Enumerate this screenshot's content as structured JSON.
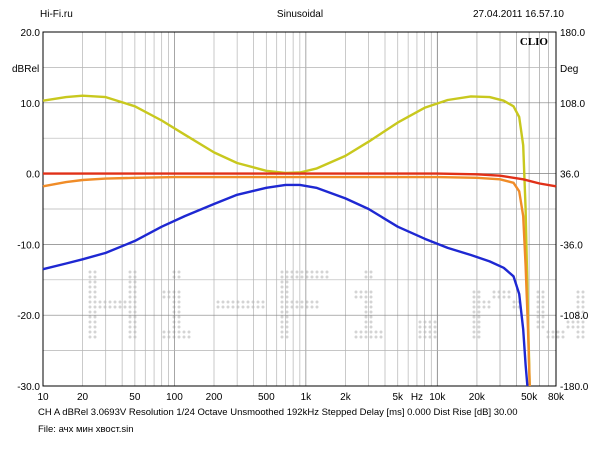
{
  "header": {
    "left": "Hi-Fi.ru",
    "center": "Sinusoidal",
    "right": "27.04.2011 16.57.10"
  },
  "footer": {
    "info": "CH A   dBRel 3.0693V   Resolution 1/24 Octave   Unsmoothed   192kHz   Stepped      Delay [ms] 0.000    Dist Rise [dB] 30.00",
    "file": "File: ачх мин хвост.sin"
  },
  "chart_data": {
    "type": "line",
    "logo": "CLIO",
    "watermark": "Hi-Fi.ru",
    "xscale": "log",
    "xlim": [
      10,
      80000
    ],
    "ylim_left": [
      -30,
      20
    ],
    "ylim_right": [
      -180,
      180
    ],
    "ylabel_left": "dBRel",
    "ylabel_right": "Deg",
    "xlabel": "Hz",
    "grid": true,
    "x_ticks": [
      {
        "v": 10,
        "label": "10"
      },
      {
        "v": 20,
        "label": "20"
      },
      {
        "v": 50,
        "label": "50"
      },
      {
        "v": 100,
        "label": "100"
      },
      {
        "v": 200,
        "label": "200"
      },
      {
        "v": 500,
        "label": "500"
      },
      {
        "v": 1000,
        "label": "1k"
      },
      {
        "v": 2000,
        "label": "2k"
      },
      {
        "v": 5000,
        "label": "5k"
      },
      {
        "v": 10000,
        "label": "10k"
      },
      {
        "v": 20000,
        "label": "20k"
      },
      {
        "v": 50000,
        "label": "50k"
      },
      {
        "v": 80000,
        "label": "80k"
      }
    ],
    "y_ticks_left": [
      {
        "v": 20,
        "label": "20.0"
      },
      {
        "v": 10,
        "label": "10.0"
      },
      {
        "v": 0,
        "label": "0.0"
      },
      {
        "v": -10,
        "label": "-10.0"
      },
      {
        "v": -20,
        "label": "-20.0"
      },
      {
        "v": -30,
        "label": "-30.0"
      }
    ],
    "y_ticks_right": [
      {
        "v": 180,
        "label": "180.0"
      },
      {
        "v": 108,
        "label": "108.0"
      },
      {
        "v": 36,
        "label": "36.0"
      },
      {
        "v": -36,
        "label": "-36.0"
      },
      {
        "v": -108,
        "label": "-108.0"
      },
      {
        "v": -180,
        "label": "-180.0"
      }
    ],
    "series": [
      {
        "color": "#c8c81e",
        "points": [
          [
            10,
            10.3
          ],
          [
            15,
            10.8
          ],
          [
            20,
            11
          ],
          [
            30,
            10.8
          ],
          [
            50,
            9.5
          ],
          [
            80,
            7.5
          ],
          [
            120,
            5.5
          ],
          [
            200,
            3
          ],
          [
            300,
            1.5
          ],
          [
            500,
            0.4
          ],
          [
            700,
            0.1
          ],
          [
            900,
            0.15
          ],
          [
            1200,
            0.7
          ],
          [
            2000,
            2.5
          ],
          [
            3000,
            4.5
          ],
          [
            5000,
            7.2
          ],
          [
            8000,
            9.3
          ],
          [
            12000,
            10.4
          ],
          [
            18000,
            10.9
          ],
          [
            25000,
            10.8
          ],
          [
            32000,
            10.3
          ],
          [
            38000,
            9.5
          ],
          [
            42000,
            8
          ],
          [
            45000,
            4
          ],
          [
            47000,
            -5
          ],
          [
            49000,
            -20
          ],
          [
            50500,
            -30
          ]
        ]
      },
      {
        "color": "#e03018",
        "points": [
          [
            10,
            0
          ],
          [
            1000,
            0
          ],
          [
            10000,
            0
          ],
          [
            20000,
            -0.1
          ],
          [
            30000,
            -0.3
          ],
          [
            45000,
            -0.8
          ],
          [
            60000,
            -1.4
          ],
          [
            80000,
            -1.8
          ]
        ]
      },
      {
        "color": "#f08c28",
        "points": [
          [
            10,
            -1.8
          ],
          [
            15,
            -1.2
          ],
          [
            20,
            -0.9
          ],
          [
            30,
            -0.7
          ],
          [
            50,
            -0.6
          ],
          [
            100,
            -0.5
          ],
          [
            1000,
            -0.5
          ],
          [
            10000,
            -0.5
          ],
          [
            20000,
            -0.6
          ],
          [
            30000,
            -0.8
          ],
          [
            38000,
            -1.3
          ],
          [
            42000,
            -2.5
          ],
          [
            45000,
            -6
          ],
          [
            47000,
            -13
          ],
          [
            49000,
            -22
          ],
          [
            50500,
            -30
          ]
        ]
      },
      {
        "color": "#1e28d2",
        "points": [
          [
            10,
            -13.5
          ],
          [
            15,
            -12.7
          ],
          [
            20,
            -12.1
          ],
          [
            30,
            -11.2
          ],
          [
            50,
            -9.5
          ],
          [
            80,
            -7.5
          ],
          [
            120,
            -6
          ],
          [
            200,
            -4.3
          ],
          [
            300,
            -3
          ],
          [
            500,
            -2
          ],
          [
            700,
            -1.6
          ],
          [
            900,
            -1.6
          ],
          [
            1200,
            -2
          ],
          [
            2000,
            -3.5
          ],
          [
            3000,
            -5
          ],
          [
            5000,
            -7.5
          ],
          [
            8000,
            -9.2
          ],
          [
            12000,
            -10.5
          ],
          [
            18000,
            -11.5
          ],
          [
            25000,
            -12.4
          ],
          [
            32000,
            -13.3
          ],
          [
            38000,
            -14.5
          ],
          [
            42000,
            -17
          ],
          [
            45000,
            -22
          ],
          [
            47000,
            -27
          ],
          [
            48500,
            -30
          ]
        ]
      }
    ]
  }
}
